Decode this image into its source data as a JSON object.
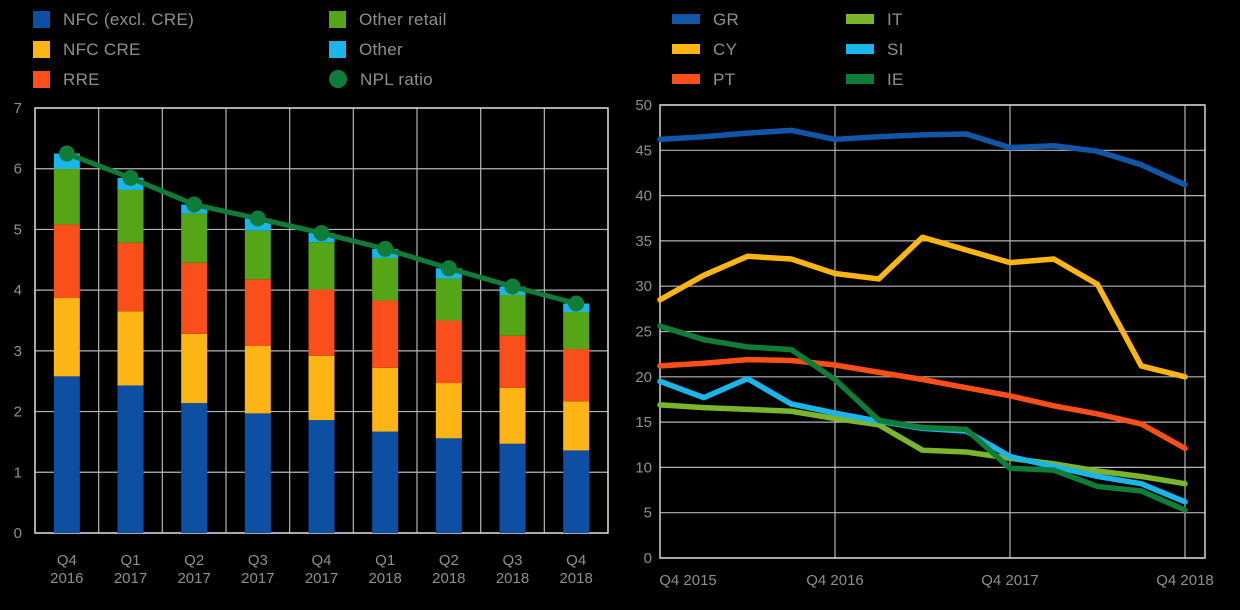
{
  "background": "#000000",
  "grid_color": "#b5b5b5",
  "frame_color": "#d4d4d4",
  "label_color": "#8f8f8f",
  "left_chart": {
    "legend": [
      {
        "label": "NFC (excl. CRE)",
        "color": "#0d4fa2",
        "marker": "square"
      },
      {
        "label": "NFC CRE",
        "color": "#fcb514",
        "marker": "square"
      },
      {
        "label": "RRE",
        "color": "#fa4f1a",
        "marker": "square"
      },
      {
        "label": "Other retail",
        "color": "#55a616",
        "marker": "square"
      },
      {
        "label": "Other",
        "color": "#1ab5ea",
        "marker": "square"
      },
      {
        "label": "NPL ratio",
        "color": "#0f7c37",
        "marker": "circle"
      }
    ]
  },
  "right_chart": {
    "legend": [
      {
        "label": "GR",
        "color": "#1156a7",
        "marker": "line"
      },
      {
        "label": "CY",
        "color": "#fcb514",
        "marker": "line"
      },
      {
        "label": "PT",
        "color": "#fa4f1a",
        "marker": "line"
      },
      {
        "label": "IT",
        "color": "#7ab62b",
        "marker": "line"
      },
      {
        "label": "SI",
        "color": "#1ab5ea",
        "marker": "line"
      },
      {
        "label": "IE",
        "color": "#0f7c37",
        "marker": "line"
      }
    ]
  },
  "chart_data": [
    {
      "type": "bar",
      "subtype": "stacked-bars-with-line-overlay",
      "title": "",
      "categories": [
        "Q4 2016",
        "Q1 2017",
        "Q2 2017",
        "Q3 2017",
        "Q4 2017",
        "Q1 2018",
        "Q2 2018",
        "Q3 2018",
        "Q4 2018"
      ],
      "series": [
        {
          "name": "NFC (excl. CRE)",
          "color": "#0d4fa2",
          "values": [
            2.58,
            2.43,
            2.14,
            1.97,
            1.86,
            1.67,
            1.56,
            1.47,
            1.36
          ]
        },
        {
          "name": "NFC CRE",
          "color": "#fcb514",
          "values": [
            1.29,
            1.22,
            1.14,
            1.11,
            1.06,
            1.05,
            0.91,
            0.92,
            0.81
          ]
        },
        {
          "name": "RRE",
          "color": "#fa4f1a",
          "values": [
            1.21,
            1.13,
            1.17,
            1.1,
            1.09,
            1.11,
            1.03,
            0.86,
            0.86
          ]
        },
        {
          "name": "Other retail",
          "color": "#55a616",
          "values": [
            0.92,
            0.87,
            0.81,
            0.8,
            0.78,
            0.7,
            0.69,
            0.67,
            0.61
          ]
        },
        {
          "name": "Other",
          "color": "#1ab5ea",
          "values": [
            0.25,
            0.2,
            0.15,
            0.2,
            0.15,
            0.15,
            0.17,
            0.14,
            0.14
          ]
        }
      ],
      "line_series": {
        "name": "NPL ratio",
        "color": "#0f7c37",
        "values": [
          6.25,
          5.85,
          5.41,
          5.18,
          4.94,
          4.68,
          4.36,
          4.06,
          3.78
        ]
      },
      "xlabel": "",
      "ylabel": "",
      "ylim": [
        0,
        7
      ],
      "ytick_step": 1,
      "grid": true,
      "legend_position": "top"
    },
    {
      "type": "line",
      "title": "",
      "x": [
        "Q4 2015",
        "Q1 2016",
        "Q2 2016",
        "Q3 2016",
        "Q4 2016",
        "Q1 2017",
        "Q2 2017",
        "Q3 2017",
        "Q4 2017",
        "Q1 2018",
        "Q2 2018",
        "Q3 2018",
        "Q4 2018"
      ],
      "xtick_labels": [
        "Q4 2015",
        "Q4 2016",
        "Q4 2017",
        "Q4 2018"
      ],
      "series": [
        {
          "name": "GR",
          "color": "#1156a7",
          "values": [
            46.2,
            46.5,
            46.9,
            47.2,
            46.2,
            46.5,
            46.7,
            46.8,
            45.3,
            45.5,
            44.9,
            43.4,
            41.2
          ]
        },
        {
          "name": "CY",
          "color": "#fcb514",
          "values": [
            28.5,
            31.2,
            33.3,
            33.0,
            31.4,
            30.8,
            35.4,
            34.0,
            32.6,
            33.0,
            30.2,
            21.2,
            20.0
          ]
        },
        {
          "name": "PT",
          "color": "#fa4f1a",
          "values": [
            21.2,
            21.5,
            21.9,
            21.8,
            21.3,
            20.5,
            19.7,
            18.8,
            17.9,
            16.8,
            15.9,
            14.8,
            12.1
          ]
        },
        {
          "name": "IT",
          "color": "#7ab62b",
          "values": [
            16.9,
            16.6,
            16.4,
            16.2,
            15.4,
            14.7,
            11.9,
            11.7,
            11.0,
            10.4,
            9.6,
            9.0,
            8.2
          ]
        },
        {
          "name": "SI",
          "color": "#1ab5ea",
          "values": [
            19.5,
            17.7,
            19.8,
            17.0,
            16.0,
            15.1,
            14.3,
            14.0,
            11.2,
            10.1,
            9.0,
            8.2,
            6.2
          ]
        },
        {
          "name": "IE",
          "color": "#0f7c37",
          "values": [
            25.6,
            24.1,
            23.3,
            23.0,
            19.7,
            15.2,
            14.4,
            14.2,
            9.9,
            9.7,
            7.9,
            7.4,
            5.3
          ]
        }
      ],
      "xlabel": "",
      "ylabel": "",
      "ylim": [
        0,
        50
      ],
      "ytick_step": 5,
      "grid": true,
      "legend_position": "top"
    }
  ]
}
